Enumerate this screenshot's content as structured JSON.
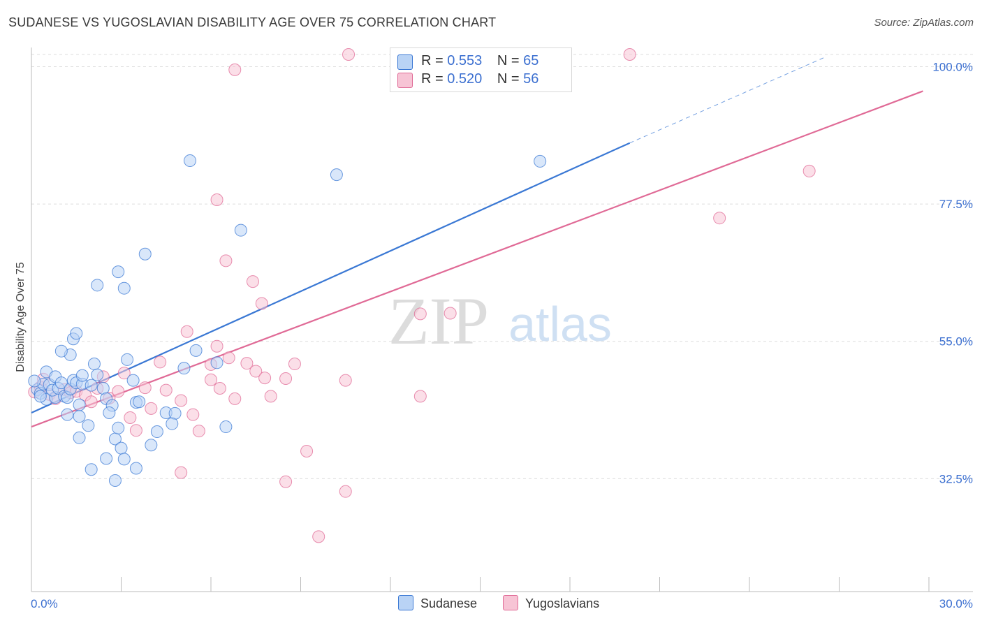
{
  "title": "SUDANESE VS YUGOSLAVIAN DISABILITY AGE OVER 75 CORRELATION CHART",
  "source": "Source: ZipAtlas.com",
  "watermark": {
    "zip": "ZIP",
    "atlas": "atlas"
  },
  "legend": {
    "r_label": "R =",
    "n_label": "N =",
    "items": [
      {
        "r": "0.553",
        "n": "65"
      },
      {
        "r": "0.520",
        "n": "56"
      }
    ]
  },
  "colors": {
    "sudanese": "#3a78d4",
    "sudanese_fill": "#b9d3f5",
    "yugoslavians": "#e06a96",
    "yugoslavians_fill": "#f7c4d5",
    "axis_label": "#3b6fd0",
    "grid": "#dddddd"
  },
  "chart_data": {
    "type": "scatter",
    "title": "SUDANESE VS YUGOSLAVIAN DISABILITY AGE OVER 75 CORRELATION CHART",
    "xlabel": "",
    "ylabel": "Disability Age Over 75",
    "xlim": [
      0,
      30
    ],
    "ylim": [
      14,
      102
    ],
    "x_tick_labels": [
      "0.0%",
      "30.0%"
    ],
    "y_ticks": [
      32.5,
      55.0,
      77.5,
      100.0
    ],
    "y_tick_labels": [
      "32.5%",
      "55.0%",
      "77.5%",
      "100.0%"
    ],
    "grid": true,
    "legend_position": "top-center",
    "series": [
      {
        "name": "Sudanese",
        "color": "#3a78d4",
        "trend": {
          "x": [
            0.0,
            20.0
          ],
          "y": [
            43.3,
            87.5
          ],
          "dashed_to": {
            "x": 26.5,
            "y": 101.5
          }
        },
        "points": [
          [
            0.2,
            47.1
          ],
          [
            0.3,
            46.5
          ],
          [
            0.4,
            48.0
          ],
          [
            0.5,
            45.5
          ],
          [
            0.6,
            47.9
          ],
          [
            0.5,
            50.0
          ],
          [
            0.8,
            45.8
          ],
          [
            0.7,
            47.0
          ],
          [
            0.8,
            49.2
          ],
          [
            0.9,
            47.3
          ],
          [
            1.0,
            48.2
          ],
          [
            1.1,
            46.0
          ],
          [
            1.2,
            45.8
          ],
          [
            1.3,
            47.2
          ],
          [
            1.4,
            48.6
          ],
          [
            1.5,
            48.2
          ],
          [
            1.2,
            43.0
          ],
          [
            1.6,
            44.6
          ],
          [
            1.3,
            52.8
          ],
          [
            1.0,
            53.4
          ],
          [
            1.6,
            42.7
          ],
          [
            1.7,
            48.0
          ],
          [
            2.0,
            47.8
          ],
          [
            1.4,
            55.4
          ],
          [
            1.5,
            56.3
          ],
          [
            1.9,
            41.2
          ],
          [
            1.7,
            49.4
          ],
          [
            1.6,
            39.2
          ],
          [
            2.1,
            51.3
          ],
          [
            2.2,
            49.5
          ],
          [
            2.4,
            47.3
          ],
          [
            2.5,
            45.6
          ],
          [
            2.7,
            44.5
          ],
          [
            2.6,
            43.3
          ],
          [
            2.8,
            39.0
          ],
          [
            3.0,
            37.5
          ],
          [
            2.9,
            40.8
          ],
          [
            3.2,
            52.0
          ],
          [
            3.4,
            48.6
          ],
          [
            3.5,
            45.0
          ],
          [
            3.6,
            45.1
          ],
          [
            4.2,
            40.2
          ],
          [
            4.0,
            38.0
          ],
          [
            2.0,
            34.0
          ],
          [
            2.5,
            35.8
          ],
          [
            3.1,
            35.7
          ],
          [
            2.8,
            32.2
          ],
          [
            3.5,
            34.2
          ],
          [
            4.5,
            43.3
          ],
          [
            4.8,
            43.2
          ],
          [
            4.7,
            41.5
          ],
          [
            5.1,
            50.6
          ],
          [
            5.5,
            53.5
          ],
          [
            6.2,
            51.5
          ],
          [
            6.5,
            41.0
          ],
          [
            3.1,
            63.7
          ],
          [
            2.9,
            66.4
          ],
          [
            3.8,
            69.3
          ],
          [
            2.2,
            64.2
          ],
          [
            5.3,
            84.6
          ],
          [
            7.0,
            73.2
          ],
          [
            10.2,
            82.3
          ],
          [
            17.0,
            84.5
          ],
          [
            0.1,
            48.5
          ],
          [
            0.3,
            46.0
          ]
        ]
      },
      {
        "name": "Yugoslavians",
        "color": "#e06a96",
        "trend": {
          "x": [
            0.0,
            29.8
          ],
          "y": [
            41.0,
            96.0
          ]
        },
        "points": [
          [
            0.1,
            46.7
          ],
          [
            0.3,
            47.5
          ],
          [
            0.4,
            48.8
          ],
          [
            0.6,
            46.3
          ],
          [
            0.8,
            45.6
          ],
          [
            1.1,
            47.1
          ],
          [
            1.3,
            46.6
          ],
          [
            1.5,
            46.8
          ],
          [
            1.8,
            46.2
          ],
          [
            2.0,
            45.1
          ],
          [
            2.2,
            47.3
          ],
          [
            2.4,
            49.2
          ],
          [
            2.6,
            45.7
          ],
          [
            2.9,
            46.8
          ],
          [
            3.1,
            49.8
          ],
          [
            3.3,
            42.5
          ],
          [
            3.5,
            40.4
          ],
          [
            3.8,
            47.4
          ],
          [
            4.0,
            44.0
          ],
          [
            4.3,
            51.6
          ],
          [
            4.5,
            47.0
          ],
          [
            5.0,
            45.3
          ],
          [
            5.4,
            43.0
          ],
          [
            5.2,
            56.6
          ],
          [
            6.0,
            48.7
          ],
          [
            6.2,
            54.2
          ],
          [
            6.0,
            51.2
          ],
          [
            6.3,
            47.3
          ],
          [
            6.6,
            52.3
          ],
          [
            6.8,
            45.6
          ],
          [
            7.2,
            51.4
          ],
          [
            7.5,
            50.1
          ],
          [
            7.8,
            49.0
          ],
          [
            8.0,
            46.0
          ],
          [
            8.5,
            48.9
          ],
          [
            8.8,
            51.3
          ],
          [
            9.2,
            37.0
          ],
          [
            10.5,
            48.6
          ],
          [
            13.0,
            46.0
          ],
          [
            13.0,
            59.5
          ],
          [
            14.0,
            59.6
          ],
          [
            5.0,
            33.5
          ],
          [
            5.6,
            40.3
          ],
          [
            7.7,
            61.2
          ],
          [
            7.4,
            64.8
          ],
          [
            6.5,
            68.2
          ],
          [
            6.2,
            78.2
          ],
          [
            6.8,
            99.5
          ],
          [
            10.6,
            102.0
          ],
          [
            12.5,
            102.0
          ],
          [
            20.0,
            102.0
          ],
          [
            23.0,
            75.2
          ],
          [
            26.0,
            82.9
          ],
          [
            8.5,
            32.0
          ],
          [
            10.5,
            30.4
          ],
          [
            9.6,
            23.0
          ]
        ]
      }
    ]
  },
  "bottom_legend": {
    "sudanese": "Sudanese",
    "yugoslavians": "Yugoslavians"
  }
}
